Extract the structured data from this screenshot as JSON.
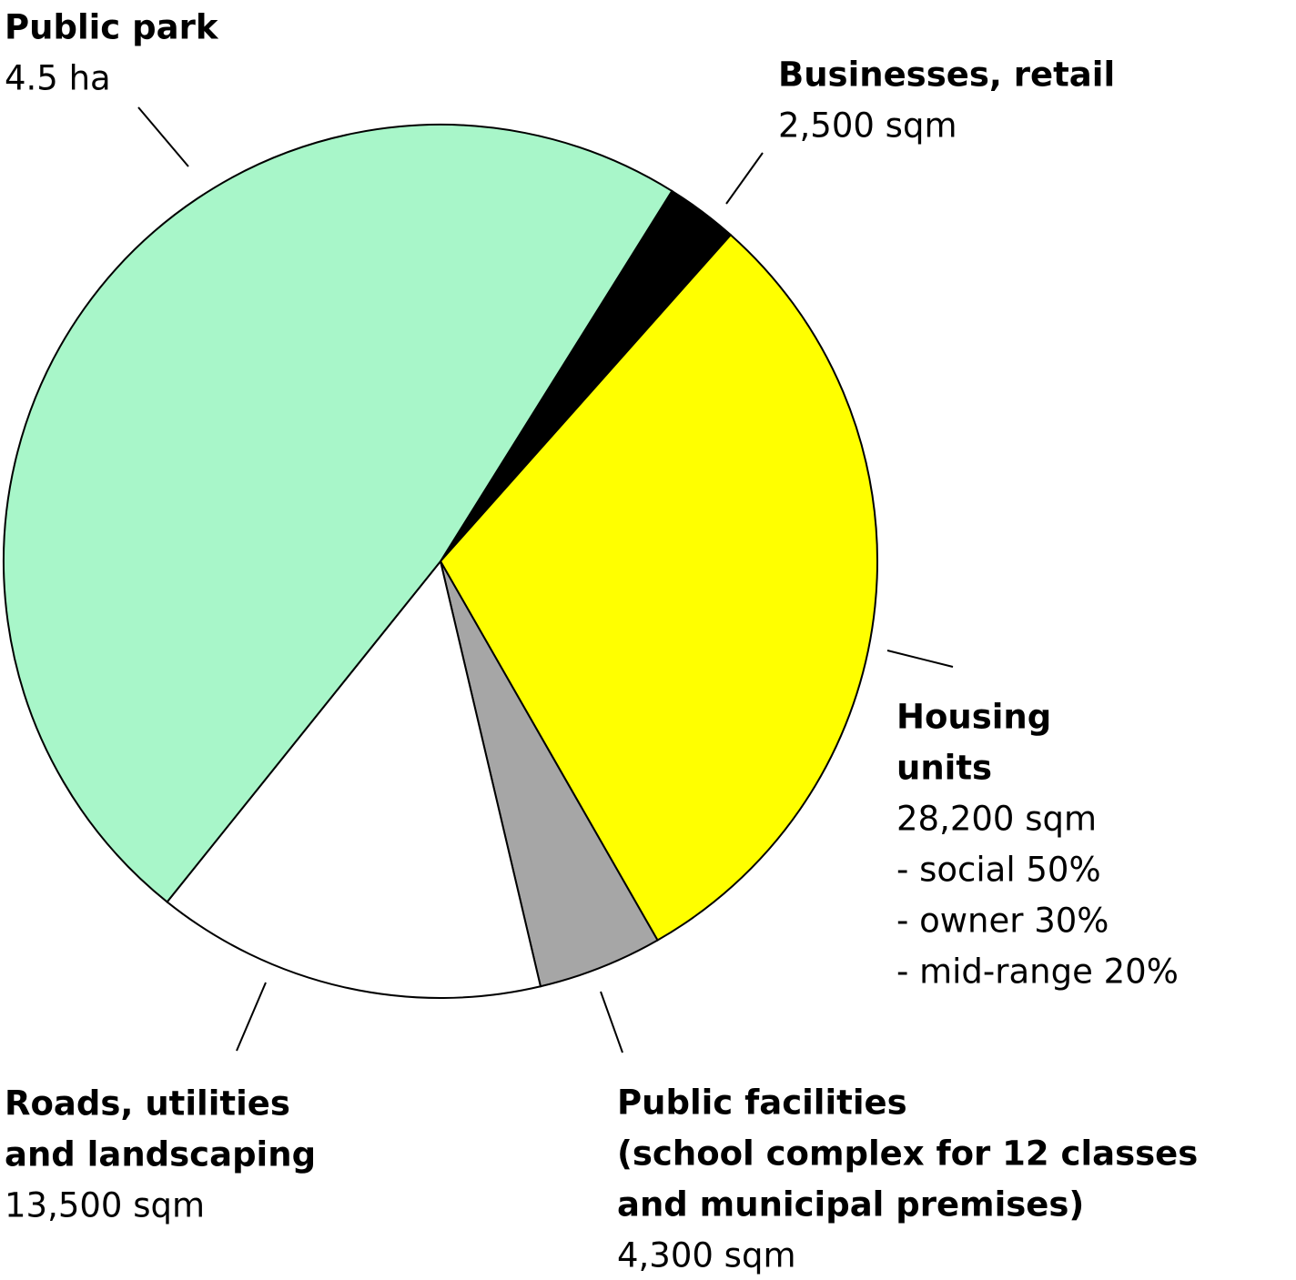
{
  "chart_data": {
    "type": "pie",
    "categories": [
      [
        "Businesses, retail"
      ],
      [
        "Housing",
        "units"
      ],
      [
        "Public facilities",
        "(school complex for 12 classes",
        "and municipal premises)"
      ],
      [
        "Roads, utilities",
        "and landscaping"
      ],
      [
        "Public park"
      ]
    ],
    "values": [
      2500,
      28200,
      4300,
      13500,
      45000
    ],
    "value_labels": [
      "2,500 sqm",
      "28,200 sqm",
      "4,300 sqm",
      "13,500 sqm",
      "4.5 ha"
    ],
    "colors": [
      "#000000",
      "#ffff00",
      "#a6a6a6",
      "#ffffff",
      "#a8f6c9"
    ],
    "annotations": [
      "- social 50%",
      "- owner 30%",
      "- mid-range 20%"
    ]
  }
}
